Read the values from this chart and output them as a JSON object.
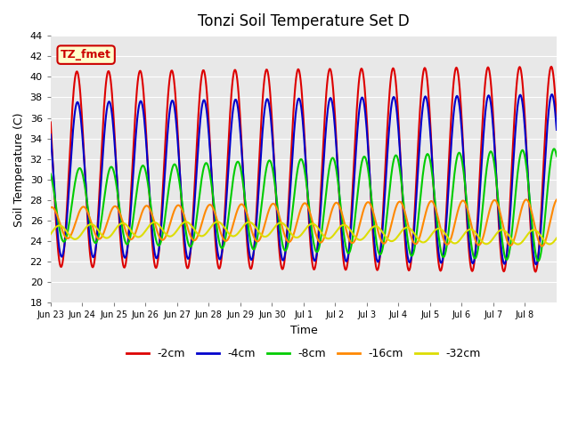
{
  "title": "Tonzi Soil Temperature Set D",
  "xlabel": "Time",
  "ylabel": "Soil Temperature (C)",
  "ylim": [
    18,
    44
  ],
  "bg_color": "#e8e8e8",
  "fig_color": "#ffffff",
  "annotation_text": "TZ_fmet",
  "annotation_bg": "#ffffcc",
  "annotation_border": "#cc0000",
  "lines": {
    "-2cm": {
      "color": "#dd0000",
      "lw": 1.5
    },
    "-4cm": {
      "color": "#0000cc",
      "lw": 1.5
    },
    "-8cm": {
      "color": "#00cc00",
      "lw": 1.5
    },
    "-16cm": {
      "color": "#ff8800",
      "lw": 1.5
    },
    "-32cm": {
      "color": "#dddd00",
      "lw": 1.5
    }
  },
  "xtick_labels": [
    "Jun 23",
    "Jun 24",
    "Jun 25",
    "Jun 26",
    "Jun 27",
    "Jun 28",
    "Jun 29",
    "Jun 30",
    "Jul 1",
    "Jul 2",
    "Jul 3",
    "Jul 4",
    "Jul 5",
    "Jul 6",
    "Jul 7",
    "Jul 8"
  ],
  "ytick_labels": [
    18,
    20,
    22,
    24,
    26,
    28,
    30,
    32,
    34,
    36,
    38,
    40,
    42,
    44
  ]
}
